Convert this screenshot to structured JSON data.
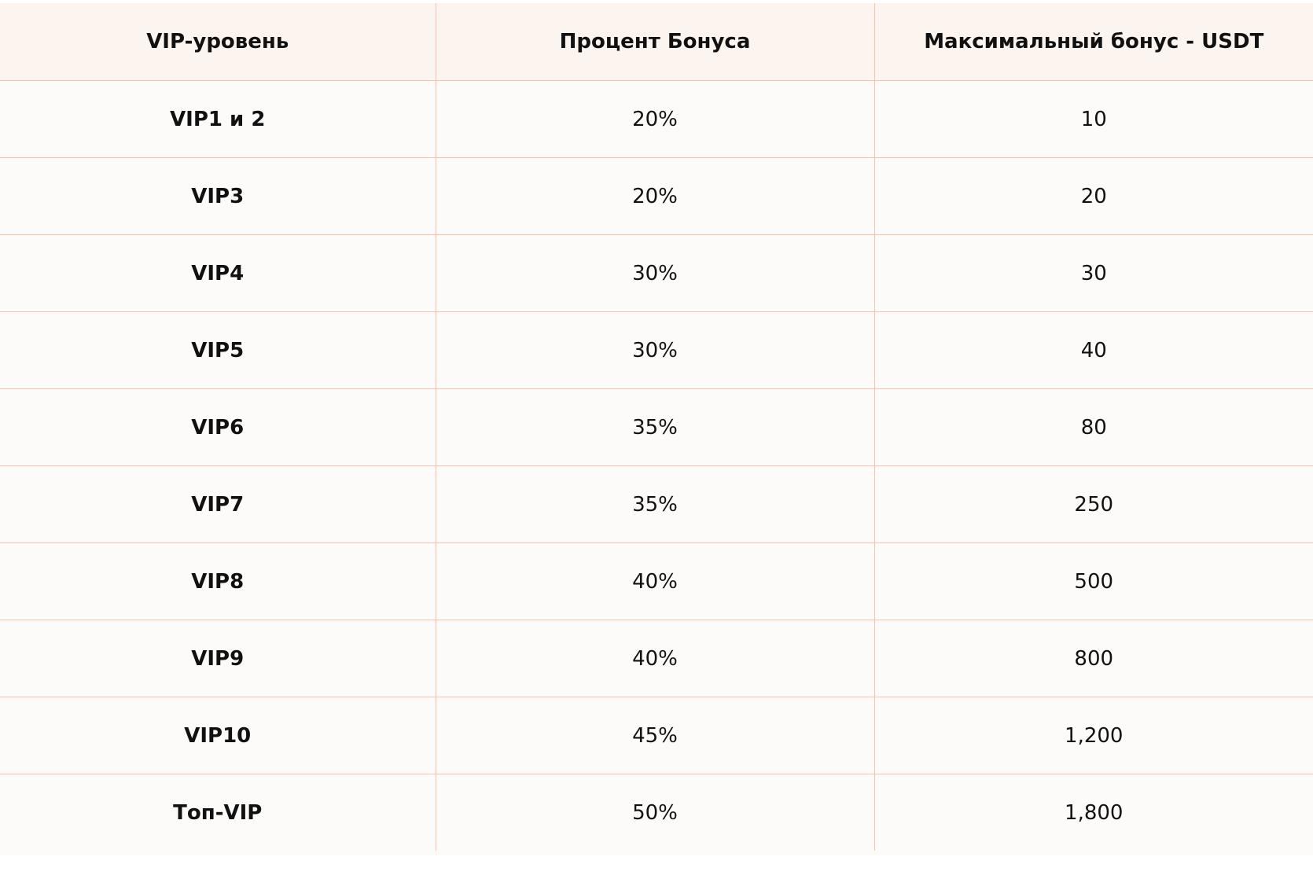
{
  "table": {
    "headers": [
      "VIP-уровень",
      "Процент Бонуса",
      "Максимальный бонус - USDT"
    ],
    "rows": [
      {
        "level": "VIP1 и 2",
        "percent": "20%",
        "max": "10"
      },
      {
        "level": "VIP3",
        "percent": "20%",
        "max": "20"
      },
      {
        "level": "VIP4",
        "percent": "30%",
        "max": "30"
      },
      {
        "level": "VIP5",
        "percent": "30%",
        "max": "40"
      },
      {
        "level": "VIP6",
        "percent": "35%",
        "max": "80"
      },
      {
        "level": "VIP7",
        "percent": "35%",
        "max": "250"
      },
      {
        "level": "VIP8",
        "percent": "40%",
        "max": "500"
      },
      {
        "level": "VIP9",
        "percent": "40%",
        "max": "800"
      },
      {
        "level": "VIP10",
        "percent": "45%",
        "max": "1,200"
      },
      {
        "level": "Топ-VIP",
        "percent": "50%",
        "max": "1,800"
      }
    ]
  },
  "colors": {
    "header_bg": "#fcf4ef",
    "body_bg": "#fdfbf9",
    "grid_line": "#e6c9bd",
    "text": "#111111"
  }
}
